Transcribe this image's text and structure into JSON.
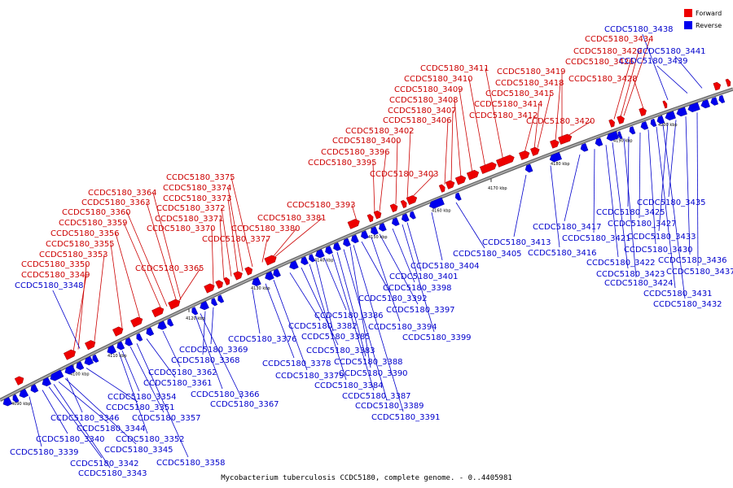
{
  "caption": "Mycobacterium tuberculosis CCDC5180, complete genome. - 0..4405981",
  "legend": [
    {
      "label": "Forward",
      "color": "#ee0000"
    },
    {
      "label": "Reverse",
      "color": "#0000ee"
    }
  ],
  "colors": {
    "forward": "#ee0000",
    "reverse": "#0000ee",
    "backbone": "#808080"
  },
  "ticks": [
    "4090 kbp",
    "4100 kbp",
    "4110 kbp",
    "4120 kbp",
    "4130 kbp",
    "4140 kbp",
    "4150 kbp",
    "4160 kbp",
    "4170 kbp",
    "4180 kbp",
    "4190 kbp",
    "4200 kbp"
  ],
  "forward_genes": [
    "CCDC5180_3348",
    "CCDC5180_3349",
    "CCDC5180_3350",
    "CCDC5180_3353",
    "CCDC5180_3355",
    "CCDC5180_3356",
    "CCDC5180_3359",
    "CCDC5180_3360",
    "CCDC5180_3363",
    "CCDC5180_3364",
    "CCDC5180_3365",
    "CCDC5180_3370",
    "CCDC5180_3371",
    "CCDC5180_3372",
    "CCDC5180_3373",
    "CCDC5180_3374",
    "CCDC5180_3375",
    "CCDC5180_3377",
    "CCDC5180_3380",
    "CCDC5180_3381",
    "CCDC5180_3393",
    "CCDC5180_3395",
    "CCDC5180_3396",
    "CCDC5180_3400",
    "CCDC5180_3402",
    "CCDC5180_3403",
    "CCDC5180_3406",
    "CCDC5180_3407",
    "CCDC5180_3408",
    "CCDC5180_3409",
    "CCDC5180_3410",
    "CCDC5180_3411",
    "CCDC5180_3412",
    "CCDC5180_3414",
    "CCDC5180_3415",
    "CCDC5180_3418",
    "CCDC5180_3419",
    "CCDC5180_3420",
    "CCDC5180_3426",
    "CCDC5180_3428",
    "CCDC5180_3429",
    "CCDC5180_3434"
  ],
  "reverse_genes": [
    "CCDC5180_3339",
    "CCDC5180_3340",
    "CCDC5180_3342",
    "CCDC5180_3343",
    "CCDC5180_3344",
    "CCDC5180_3345",
    "CCDC5180_3346",
    "CCDC5180_3351",
    "CCDC5180_3352",
    "CCDC5180_3354",
    "CCDC5180_3357",
    "CCDC5180_3358",
    "CCDC5180_3361",
    "CCDC5180_3362",
    "CCDC5180_3366",
    "CCDC5180_3367",
    "CCDC5180_3368",
    "CCDC5180_3369",
    "CCDC5180_3376",
    "CCDC5180_3378",
    "CCDC5180_3379",
    "CCDC5180_3382",
    "CCDC5180_3383",
    "CCDC5180_3384",
    "CCDC5180_3385",
    "CCDC5180_3386",
    "CCDC5180_3387",
    "CCDC5180_3388",
    "CCDC5180_3389",
    "CCDC5180_3390",
    "CCDC5180_3391",
    "CCDC5180_3392",
    "CCDC5180_3394",
    "CCDC5180_3397",
    "CCDC5180_3398",
    "CCDC5180_3399",
    "CCDC5180_3401",
    "CCDC5180_3404",
    "CCDC5180_3405",
    "CCDC5180_3413",
    "CCDC5180_3416",
    "CCDC5180_3417",
    "CCDC5180_3421",
    "CCDC5180_3422",
    "CCDC5180_3423",
    "CCDC5180_3424",
    "CCDC5180_3425",
    "CCDC5180_3427",
    "CCDC5180_3430",
    "CCDC5180_3431",
    "CCDC5180_3432",
    "CCDC5180_3433",
    "CCDC5180_3435",
    "CCDC5180_3436",
    "CCDC5180_3437",
    "CCDC5180_3438",
    "CCDC5180_3439",
    "CCDC5180_3441"
  ]
}
